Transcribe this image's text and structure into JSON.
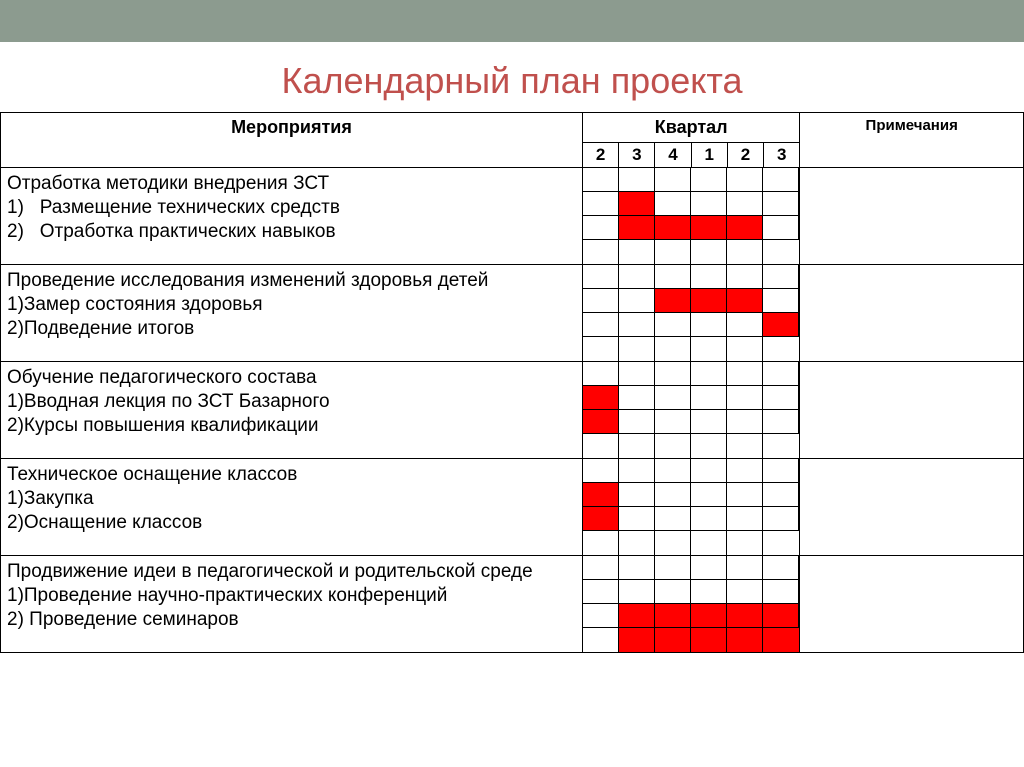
{
  "title": "Календарный план проекта",
  "headers": {
    "activities": "Мероприятия",
    "quarter": "Квартал",
    "notes": "Примечания"
  },
  "quarter_labels": [
    "2",
    "3",
    "4",
    "1",
    "2",
    "3"
  ],
  "colors": {
    "top_bar": "#8c9b8f",
    "title": "#c0504d",
    "fill": "#ff0000",
    "border": "#000000",
    "background": "#ffffff"
  },
  "fonts": {
    "title_size": 36,
    "header_size": 18,
    "body_size": 19
  },
  "activities": [
    {
      "lines": [
        "Отработка методики внедрения ЗСТ",
        "1)   Размещение технических средств",
        "2)   Отработка практических навыков"
      ],
      "gantt_rows": 4,
      "fills": [
        [],
        [
          1
        ],
        [
          1,
          2,
          3,
          4
        ],
        []
      ]
    },
    {
      "lines": [
        "Проведение исследования изменений здоровья детей",
        "1)Замер состояния здоровья",
        "2)Подведение итогов"
      ],
      "gantt_rows": 4,
      "fills": [
        [],
        [
          2,
          3,
          4
        ],
        [
          5
        ],
        []
      ]
    },
    {
      "lines": [
        "Обучение педагогического состава",
        "1)Вводная лекция по ЗСТ Базарного",
        "2)Курсы повышения квалификации"
      ],
      "gantt_rows": 4,
      "fills": [
        [],
        [
          0
        ],
        [
          0
        ],
        []
      ]
    },
    {
      "lines": [
        "Техническое оснащение классов",
        "1)Закупка",
        "2)Оснащение классов"
      ],
      "gantt_rows": 4,
      "fills": [
        [],
        [
          0
        ],
        [
          0
        ],
        []
      ]
    },
    {
      "lines": [
        "Продвижение идеи в педагогической и родительской среде",
        "1)Проведение научно-практических конференций",
        "2) Проведение семинаров"
      ],
      "gantt_rows": 4,
      "fills": [
        [],
        [],
        [
          1,
          2,
          3,
          4,
          5
        ],
        [
          1,
          2,
          3,
          4,
          5
        ]
      ]
    }
  ]
}
